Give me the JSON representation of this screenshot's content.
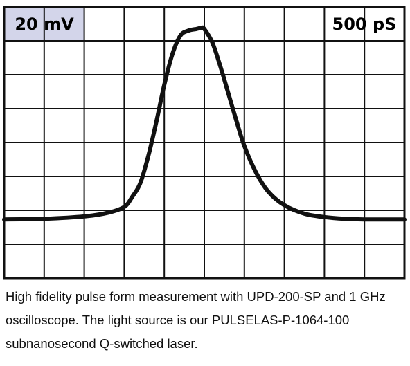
{
  "chart_data": {
    "type": "line",
    "title": "",
    "xlabel": "",
    "ylabel": "",
    "grid": true,
    "divisions": {
      "x": 10,
      "y": 8
    },
    "scales": {
      "vertical": "20 mV",
      "horizontal": "500 pS"
    },
    "xlim": [
      0,
      10
    ],
    "ylim": [
      0,
      8
    ],
    "series": [
      {
        "x": [
          0,
          1,
          2,
          2.6,
          3.0,
          3.2,
          3.4,
          3.6,
          3.8,
          4.0,
          4.2,
          4.4,
          4.6,
          4.8,
          4.93,
          5.0,
          5.2,
          5.4,
          5.6,
          5.8,
          6.0,
          6.3,
          6.6,
          7.0,
          7.5,
          8.0,
          8.5,
          9.0,
          10
        ],
        "y": [
          1.73,
          1.75,
          1.82,
          1.93,
          2.1,
          2.4,
          2.8,
          3.6,
          4.6,
          5.7,
          6.6,
          7.15,
          7.3,
          7.35,
          7.38,
          7.35,
          6.95,
          6.25,
          5.45,
          4.65,
          3.9,
          3.1,
          2.55,
          2.15,
          1.9,
          1.8,
          1.75,
          1.73,
          1.73
        ]
      }
    ],
    "colors": {
      "trace": "#111111",
      "grid": "#111111",
      "label_bg": "#d3d5ea"
    }
  },
  "caption": "High fidelity pulse form measurement with UPD-200-SP and 1 GHz oscilloscope. The light source is our PULSELAS-P-1064-100 subnanosecond Q-switched laser."
}
